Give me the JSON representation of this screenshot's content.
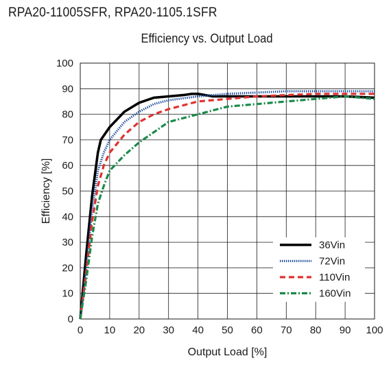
{
  "header": {
    "title": "RPA20-11005SFR, RPA20-1105.1SFR"
  },
  "chart_data": {
    "type": "line",
    "title": "Efficiency vs. Output Load",
    "xlabel": "Output Load [%]",
    "ylabel": "Efficiency [%]",
    "xlim": [
      0,
      100
    ],
    "ylim": [
      0,
      100
    ],
    "xticks": [
      0,
      10,
      20,
      30,
      40,
      50,
      60,
      70,
      80,
      90,
      100
    ],
    "yticks": [
      0,
      10,
      20,
      30,
      40,
      50,
      60,
      70,
      80,
      90,
      100
    ],
    "grid": true,
    "legend_position": "bottom-right",
    "series": [
      {
        "name": "36Vin",
        "color": "#000000",
        "dash": "solid",
        "points": [
          [
            0,
            0
          ],
          [
            2,
            25
          ],
          [
            4,
            48
          ],
          [
            6,
            65
          ],
          [
            7,
            70
          ],
          [
            10,
            75
          ],
          [
            15,
            81
          ],
          [
            20,
            84.5
          ],
          [
            25,
            86.5
          ],
          [
            30,
            87
          ],
          [
            35,
            87.5
          ],
          [
            38,
            88
          ],
          [
            40,
            88
          ],
          [
            45,
            87
          ],
          [
            50,
            87
          ],
          [
            60,
            87
          ],
          [
            70,
            87
          ],
          [
            80,
            87
          ],
          [
            90,
            87
          ],
          [
            100,
            86.5
          ]
        ]
      },
      {
        "name": "72Vin",
        "color": "#1f4e9c",
        "dash": "dot",
        "points": [
          [
            0,
            0
          ],
          [
            2,
            20
          ],
          [
            4,
            42
          ],
          [
            6,
            58
          ],
          [
            8,
            65
          ],
          [
            10,
            70
          ],
          [
            15,
            77
          ],
          [
            20,
            81
          ],
          [
            25,
            84
          ],
          [
            30,
            85.5
          ],
          [
            40,
            87
          ],
          [
            50,
            88
          ],
          [
            60,
            88.5
          ],
          [
            70,
            89
          ],
          [
            80,
            89
          ],
          [
            90,
            89
          ],
          [
            100,
            89
          ]
        ]
      },
      {
        "name": "110Vin",
        "color": "#e0312f",
        "dash": "dash",
        "points": [
          [
            0,
            0
          ],
          [
            2,
            18
          ],
          [
            4,
            38
          ],
          [
            6,
            52
          ],
          [
            8,
            60
          ],
          [
            10,
            65
          ],
          [
            15,
            72
          ],
          [
            20,
            77
          ],
          [
            25,
            80
          ],
          [
            30,
            82
          ],
          [
            40,
            85
          ],
          [
            50,
            86
          ],
          [
            60,
            87
          ],
          [
            70,
            87.5
          ],
          [
            80,
            88
          ],
          [
            90,
            88
          ],
          [
            100,
            88
          ]
        ]
      },
      {
        "name": "160Vin",
        "color": "#1a8a4a",
        "dash": "dashdot",
        "points": [
          [
            0,
            0
          ],
          [
            2,
            15
          ],
          [
            4,
            32
          ],
          [
            6,
            45
          ],
          [
            8,
            52
          ],
          [
            10,
            58
          ],
          [
            15,
            64
          ],
          [
            20,
            69
          ],
          [
            25,
            73
          ],
          [
            30,
            77
          ],
          [
            40,
            80
          ],
          [
            50,
            83
          ],
          [
            60,
            84
          ],
          [
            70,
            85
          ],
          [
            80,
            86
          ],
          [
            90,
            87
          ],
          [
            100,
            86
          ]
        ]
      }
    ]
  }
}
